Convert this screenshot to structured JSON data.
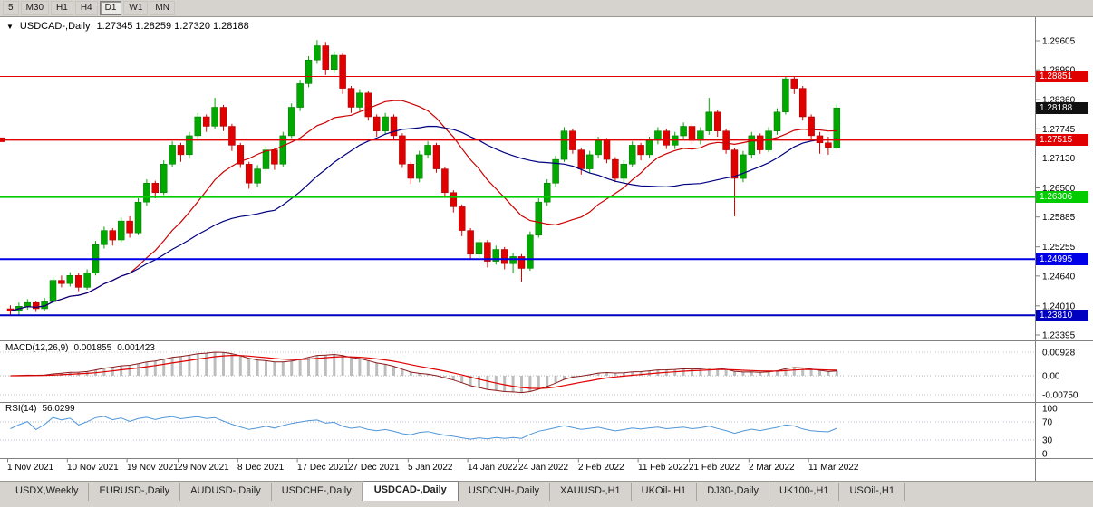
{
  "toolbar": {
    "timeframes": [
      "5",
      "M30",
      "H1",
      "H4",
      "D1",
      "W1",
      "MN"
    ],
    "active_timeframe": "D1"
  },
  "chart_title": {
    "menu_icon": "▼",
    "symbol": "USDCAD-,Daily",
    "ohlc": "1.27345 1.28259 1.27320 1.28188"
  },
  "chart_data": {
    "type": "candlestick",
    "symbol": "USDCAD-",
    "period": "Daily",
    "current_ohlc": {
      "open": "1.27345",
      "high": "1.28259",
      "low": "1.27320",
      "close": "1.28188"
    },
    "price_axis_labels": [
      "1.29605",
      "1.28990",
      "1.28360",
      "1.27745",
      "1.27130",
      "1.26500",
      "1.25885",
      "1.25255",
      "1.24640",
      "1.24010",
      "1.23395"
    ],
    "axis_range": {
      "top": 1.29605,
      "bottom": 1.23395
    },
    "current_price_badge": {
      "text": "1.28188",
      "color": "#111111"
    },
    "levels": [
      {
        "price": 1.28851,
        "text": "1.28851",
        "color": "#e00000",
        "thickness": 1,
        "handle": false
      },
      {
        "price": 1.27515,
        "text": "1.27515",
        "color": "#e00000",
        "thickness": 2,
        "handle": true
      },
      {
        "price": 1.26306,
        "text": "1.26306",
        "color": "#00cc00",
        "thickness": 2,
        "handle": false
      },
      {
        "price": 1.24995,
        "text": "1.24995",
        "color": "#0000e8",
        "thickness": 2,
        "handle": false
      },
      {
        "price": 1.2381,
        "text": "1.23810",
        "color": "#0000c0",
        "thickness": 2,
        "handle": false
      }
    ],
    "candle_colors": {
      "up": "#00a800",
      "up_stroke": "#007500",
      "down": "#e00000",
      "down_stroke": "#a00000"
    },
    "moving_averages": [
      {
        "type": "sma",
        "period": 15,
        "color": "#cc0000"
      },
      {
        "type": "sma",
        "period": 32,
        "color": "#000080"
      }
    ],
    "date_labels": [
      {
        "text": "1 Nov 2021",
        "i": 0
      },
      {
        "text": "10 Nov 2021",
        "i": 7
      },
      {
        "text": "19 Nov 2021",
        "i": 14
      },
      {
        "text": "29 Nov 2021",
        "i": 20
      },
      {
        "text": "8 Dec 2021",
        "i": 27
      },
      {
        "text": "17 Dec 2021",
        "i": 34
      },
      {
        "text": "27 Dec 2021",
        "i": 40
      },
      {
        "text": "5 Jan 2022",
        "i": 47
      },
      {
        "text": "14 Jan 2022",
        "i": 54
      },
      {
        "text": "24 Jan 2022",
        "i": 60
      },
      {
        "text": "2 Feb 2022",
        "i": 67
      },
      {
        "text": "11 Feb 2022",
        "i": 74
      },
      {
        "text": "21 Feb 2022",
        "i": 80
      },
      {
        "text": "2 Mar 2022",
        "i": 87
      },
      {
        "text": "11 Mar 2022",
        "i": 94
      }
    ],
    "macd": {
      "name": "MACD(12,26,9)",
      "value_main": "0.001855",
      "value_signal": "0.001423",
      "axis_labels": [
        "0.00928",
        "0.00",
        "-0.00750"
      ],
      "axis_top_value": 0.00928,
      "axis_bottom_value": -0.0075,
      "fast": 12,
      "slow": 26,
      "signal": 9,
      "bar_color": "#bdbdbd",
      "line_color": "#8b1a1a",
      "signal_color": "#e00000"
    },
    "rsi": {
      "name": "RSI(14)",
      "value": "56.0299",
      "axis_labels": [
        "100",
        "70",
        "30",
        "0"
      ],
      "period": 14,
      "levels": [
        70,
        30
      ],
      "line_color": "#4f96d8"
    },
    "candles": [
      [
        1.2395,
        1.2402,
        1.238,
        1.239
      ],
      [
        1.239,
        1.2408,
        1.2381,
        1.24
      ],
      [
        1.24,
        1.2415,
        1.2393,
        1.2408
      ],
      [
        1.2408,
        1.2412,
        1.2388,
        1.2395
      ],
      [
        1.2395,
        1.2418,
        1.239,
        1.241
      ],
      [
        1.241,
        1.2462,
        1.2405,
        1.2455
      ],
      [
        1.2455,
        1.2465,
        1.244,
        1.2448
      ],
      [
        1.2448,
        1.2472,
        1.2442,
        1.2465
      ],
      [
        1.2465,
        1.247,
        1.2432,
        1.244
      ],
      [
        1.244,
        1.2478,
        1.2435,
        1.247
      ],
      [
        1.247,
        1.2538,
        1.2465,
        1.253
      ],
      [
        1.253,
        1.2568,
        1.2522,
        1.256
      ],
      [
        1.256,
        1.2565,
        1.2528,
        1.254
      ],
      [
        1.254,
        1.2588,
        1.2535,
        1.258
      ],
      [
        1.258,
        1.259,
        1.2545,
        1.2555
      ],
      [
        1.2555,
        1.2628,
        1.255,
        1.262
      ],
      [
        1.262,
        1.2668,
        1.2612,
        1.266
      ],
      [
        1.266,
        1.2665,
        1.2628,
        1.264
      ],
      [
        1.264,
        1.2708,
        1.2635,
        1.27
      ],
      [
        1.27,
        1.2748,
        1.2695,
        1.274
      ],
      [
        1.274,
        1.2745,
        1.2705,
        1.272
      ],
      [
        1.272,
        1.2768,
        1.2712,
        1.276
      ],
      [
        1.276,
        1.2808,
        1.2752,
        1.28
      ],
      [
        1.28,
        1.2805,
        1.2768,
        1.278
      ],
      [
        1.278,
        1.284,
        1.2775,
        1.282
      ],
      [
        1.282,
        1.2825,
        1.277,
        1.278
      ],
      [
        1.278,
        1.2785,
        1.2728,
        1.274
      ],
      [
        1.274,
        1.2745,
        1.2692,
        1.27
      ],
      [
        1.27,
        1.2705,
        1.2648,
        1.266
      ],
      [
        1.266,
        1.2698,
        1.2652,
        1.269
      ],
      [
        1.269,
        1.2738,
        1.2685,
        1.273
      ],
      [
        1.273,
        1.2735,
        1.2688,
        1.27
      ],
      [
        1.27,
        1.2768,
        1.2695,
        1.276
      ],
      [
        1.276,
        1.2828,
        1.2755,
        1.282
      ],
      [
        1.282,
        1.2878,
        1.2812,
        1.287
      ],
      [
        1.287,
        1.2928,
        1.2862,
        1.292
      ],
      [
        1.292,
        1.2962,
        1.2912,
        1.295
      ],
      [
        1.295,
        1.2958,
        1.2888,
        1.29
      ],
      [
        1.29,
        1.2938,
        1.2892,
        1.293
      ],
      [
        1.293,
        1.2935,
        1.2848,
        1.286
      ],
      [
        1.286,
        1.2865,
        1.2808,
        1.282
      ],
      [
        1.282,
        1.2858,
        1.2812,
        1.285
      ],
      [
        1.285,
        1.2855,
        1.2792,
        1.28
      ],
      [
        1.28,
        1.2805,
        1.2758,
        1.277
      ],
      [
        1.277,
        1.2808,
        1.2762,
        1.28
      ],
      [
        1.28,
        1.2805,
        1.2752,
        1.276
      ],
      [
        1.276,
        1.2765,
        1.2692,
        1.27
      ],
      [
        1.27,
        1.2705,
        1.2658,
        1.267
      ],
      [
        1.267,
        1.2728,
        1.2662,
        1.272
      ],
      [
        1.272,
        1.2748,
        1.2712,
        1.274
      ],
      [
        1.274,
        1.2745,
        1.2682,
        1.269
      ],
      [
        1.269,
        1.2695,
        1.2632,
        1.264
      ],
      [
        1.264,
        1.2645,
        1.2598,
        1.261
      ],
      [
        1.261,
        1.2615,
        1.2548,
        1.256
      ],
      [
        1.256,
        1.2565,
        1.2498,
        1.251
      ],
      [
        1.251,
        1.2542,
        1.2502,
        1.2535
      ],
      [
        1.2535,
        1.254,
        1.2482,
        1.2495
      ],
      [
        1.2495,
        1.2528,
        1.2488,
        1.252
      ],
      [
        1.252,
        1.2525,
        1.2478,
        1.249
      ],
      [
        1.249,
        1.2512,
        1.247,
        1.2505
      ],
      [
        1.2505,
        1.251,
        1.2452,
        1.248
      ],
      [
        1.248,
        1.2558,
        1.2475,
        1.255
      ],
      [
        1.255,
        1.2628,
        1.2545,
        1.262
      ],
      [
        1.262,
        1.2668,
        1.2612,
        1.266
      ],
      [
        1.266,
        1.2718,
        1.2652,
        1.271
      ],
      [
        1.271,
        1.2778,
        1.2705,
        1.277
      ],
      [
        1.277,
        1.2775,
        1.2722,
        1.273
      ],
      [
        1.273,
        1.2735,
        1.2678,
        1.269
      ],
      [
        1.269,
        1.2728,
        1.2682,
        1.272
      ],
      [
        1.272,
        1.2758,
        1.2712,
        1.275
      ],
      [
        1.275,
        1.2755,
        1.2702,
        1.271
      ],
      [
        1.271,
        1.2715,
        1.2662,
        1.267
      ],
      [
        1.267,
        1.2708,
        1.2662,
        1.27
      ],
      [
        1.27,
        1.2748,
        1.2695,
        1.274
      ],
      [
        1.274,
        1.2745,
        1.2708,
        1.272
      ],
      [
        1.272,
        1.2758,
        1.2712,
        1.275
      ],
      [
        1.275,
        1.2778,
        1.2742,
        1.277
      ],
      [
        1.277,
        1.2775,
        1.2732,
        1.274
      ],
      [
        1.274,
        1.2768,
        1.2732,
        1.276
      ],
      [
        1.276,
        1.2788,
        1.2752,
        1.278
      ],
      [
        1.278,
        1.2785,
        1.2742,
        1.275
      ],
      [
        1.275,
        1.2778,
        1.2742,
        1.277
      ],
      [
        1.277,
        1.284,
        1.2762,
        1.281
      ],
      [
        1.281,
        1.2815,
        1.2758,
        1.277
      ],
      [
        1.277,
        1.2775,
        1.2722,
        1.273
      ],
      [
        1.273,
        1.2735,
        1.259,
        1.267
      ],
      [
        1.267,
        1.2728,
        1.2662,
        1.272
      ],
      [
        1.272,
        1.2768,
        1.2712,
        1.276
      ],
      [
        1.276,
        1.2765,
        1.2722,
        1.273
      ],
      [
        1.273,
        1.2778,
        1.2725,
        1.277
      ],
      [
        1.277,
        1.2818,
        1.2762,
        1.281
      ],
      [
        1.281,
        1.28851,
        1.2805,
        1.288
      ],
      [
        1.288,
        1.2885,
        1.2848,
        1.286
      ],
      [
        1.286,
        1.2865,
        1.2792,
        1.28
      ],
      [
        1.28,
        1.2805,
        1.2752,
        1.276
      ],
      [
        1.276,
        1.2768,
        1.2722,
        1.2745
      ],
      [
        1.2745,
        1.2758,
        1.272,
        1.2735
      ],
      [
        1.27345,
        1.28259,
        1.2732,
        1.28188
      ]
    ]
  },
  "tabs": {
    "items": [
      "USDX,Weekly",
      "EURUSD-,Daily",
      "AUDUSD-,Daily",
      "USDCHF-,Daily",
      "USDCAD-,Daily",
      "USDCNH-,Daily",
      "XAUUSD-,H1",
      "UKOil-,H1",
      "DJ30-,Daily",
      "UK100-,H1",
      "USOil-,H1"
    ],
    "active_index": 4
  }
}
